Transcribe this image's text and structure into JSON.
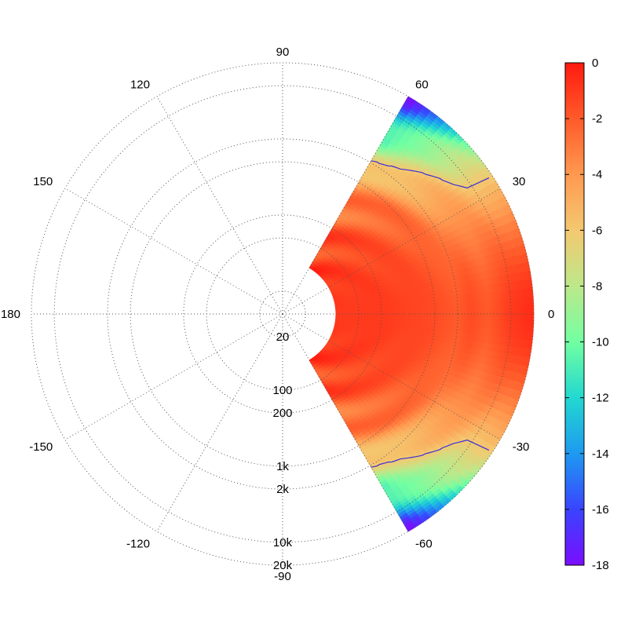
{
  "chart_data": {
    "type": "heatmap",
    "subtype": "polar",
    "title": "",
    "angle_ticks": [
      "90",
      "120",
      "150",
      "180",
      "-150",
      "-120",
      "-90",
      "60",
      "30",
      "0",
      "-30",
      "-60"
    ],
    "angle_tick_values": [
      90,
      120,
      150,
      180,
      -150,
      -120,
      -90,
      60,
      30,
      0,
      -30,
      -60
    ],
    "radial_axis": "log",
    "radial_range": [
      10,
      20000
    ],
    "radial_ticks": [
      "20",
      "100",
      "200",
      "1k",
      "2k",
      "10k",
      "20k"
    ],
    "radial_tick_values": [
      20,
      100,
      200,
      1000,
      2000,
      10000,
      20000
    ],
    "data_angle_range": [
      -60,
      60
    ],
    "data_radius_range": [
      50,
      20000
    ],
    "grid": true,
    "colorbar": {
      "min": -18,
      "max": 0,
      "ticks": [
        "0",
        "-2",
        "-4",
        "-6",
        "-8",
        "-10",
        "-12",
        "-14",
        "-16",
        "-18"
      ],
      "tick_values": [
        0,
        -2,
        -4,
        -6,
        -8,
        -10,
        -12,
        -14,
        -16,
        -18
      ],
      "colors": [
        "#7a0dff",
        "#3a44ff",
        "#1e9af0",
        "#22d8d0",
        "#72ffa2",
        "#bde88a",
        "#f4c870",
        "#ff9950",
        "#ff5a2a",
        "#ff1a10"
      ]
    },
    "contour_level": -6,
    "contour_color": "#3a2fd6",
    "values_db_by_radius": {
      "radii_hz": [
        50,
        200,
        1000,
        2000,
        3000,
        5000,
        10000,
        20000
      ],
      "db_at_0deg": [
        -1,
        -1,
        -1.5,
        -2,
        -1.5,
        -2,
        -1,
        -0.5
      ],
      "db_at_60deg": [
        -1,
        -2,
        -4,
        -7,
        -9,
        -10,
        -14,
        -18
      ]
    }
  }
}
